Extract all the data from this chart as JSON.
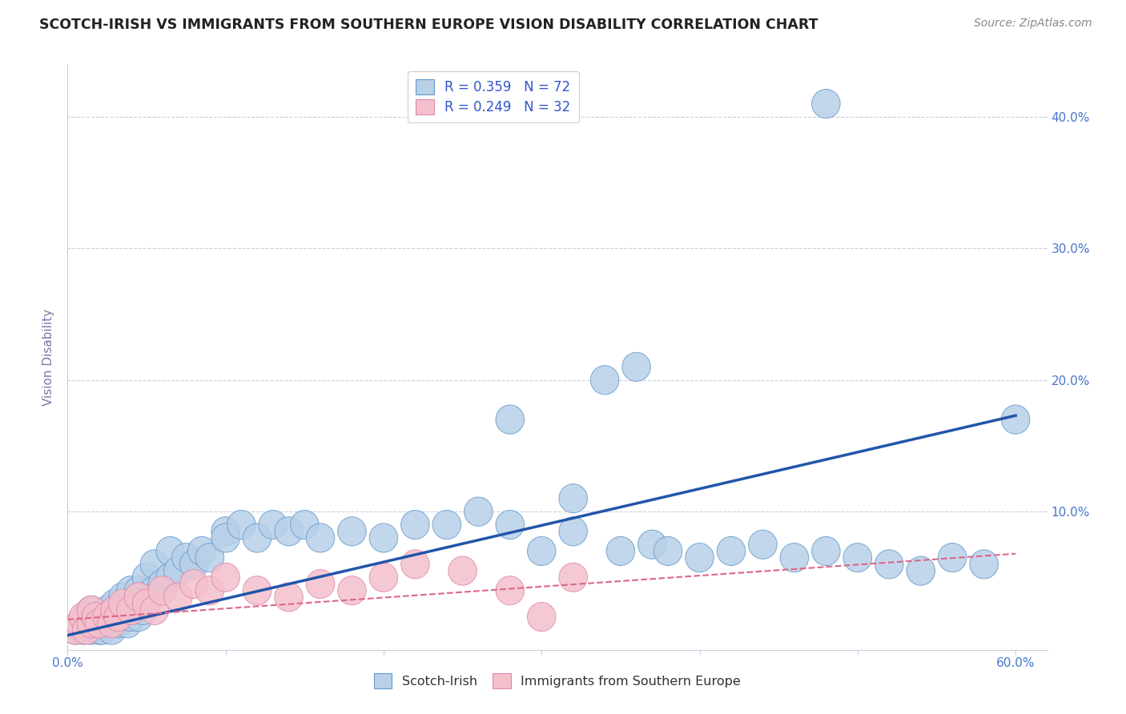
{
  "title": "SCOTCH-IRISH VS IMMIGRANTS FROM SOUTHERN EUROPE VISION DISABILITY CORRELATION CHART",
  "source": "Source: ZipAtlas.com",
  "ylabel": "Vision Disability",
  "r_blue": 0.359,
  "n_blue": 72,
  "r_pink": 0.249,
  "n_pink": 32,
  "legend_label_blue": "Scotch-Irish",
  "legend_label_pink": "Immigrants from Southern Europe",
  "blue_color": "#b8d0e8",
  "blue_edge_color": "#6699cc",
  "blue_line_color": "#2255aa",
  "pink_color": "#f4c0cc",
  "pink_edge_color": "#dd88aa",
  "pink_line_color": "#dd6688",
  "xlim": [
    0.0,
    0.62
  ],
  "ylim": [
    -0.005,
    0.44
  ],
  "title_color": "#222222",
  "source_color": "#888888",
  "grid_color": "#ccccdd",
  "right_ytick_vals": [
    0.1,
    0.2,
    0.3,
    0.4
  ],
  "right_yticklabels": [
    "10.0%",
    "20.0%",
    "30.0%",
    "40.0%"
  ],
  "blue_line_x": [
    0.0,
    0.6
  ],
  "blue_line_y": [
    0.006,
    0.173
  ],
  "pink_line_x": [
    0.0,
    0.6
  ],
  "pink_line_y": [
    0.018,
    0.068
  ],
  "blue_scatter_x": [
    0.005,
    0.008,
    0.01,
    0.012,
    0.015,
    0.015,
    0.018,
    0.02,
    0.02,
    0.022,
    0.025,
    0.025,
    0.028,
    0.03,
    0.03,
    0.032,
    0.035,
    0.035,
    0.038,
    0.04,
    0.04,
    0.042,
    0.045,
    0.045,
    0.048,
    0.05,
    0.05,
    0.055,
    0.055,
    0.06,
    0.065,
    0.065,
    0.07,
    0.075,
    0.08,
    0.085,
    0.09,
    0.1,
    0.1,
    0.11,
    0.12,
    0.13,
    0.14,
    0.15,
    0.16,
    0.18,
    0.2,
    0.22,
    0.24,
    0.26,
    0.28,
    0.3,
    0.32,
    0.35,
    0.37,
    0.38,
    0.4,
    0.42,
    0.44,
    0.46,
    0.48,
    0.5,
    0.52,
    0.54,
    0.56,
    0.58,
    0.6,
    0.32,
    0.28,
    0.34,
    0.36,
    0.48
  ],
  "blue_scatter_y": [
    0.01,
    0.015,
    0.01,
    0.02,
    0.01,
    0.025,
    0.015,
    0.01,
    0.02,
    0.01,
    0.015,
    0.025,
    0.01,
    0.02,
    0.03,
    0.015,
    0.02,
    0.035,
    0.015,
    0.02,
    0.04,
    0.025,
    0.02,
    0.04,
    0.025,
    0.03,
    0.05,
    0.04,
    0.06,
    0.045,
    0.05,
    0.07,
    0.055,
    0.065,
    0.06,
    0.07,
    0.065,
    0.085,
    0.08,
    0.09,
    0.08,
    0.09,
    0.085,
    0.09,
    0.08,
    0.085,
    0.08,
    0.09,
    0.09,
    0.1,
    0.09,
    0.07,
    0.085,
    0.07,
    0.075,
    0.07,
    0.065,
    0.07,
    0.075,
    0.065,
    0.07,
    0.065,
    0.06,
    0.055,
    0.065,
    0.06,
    0.17,
    0.11,
    0.17,
    0.2,
    0.21,
    0.41
  ],
  "pink_scatter_x": [
    0.005,
    0.008,
    0.01,
    0.012,
    0.015,
    0.015,
    0.018,
    0.02,
    0.025,
    0.028,
    0.03,
    0.032,
    0.035,
    0.04,
    0.045,
    0.05,
    0.055,
    0.06,
    0.07,
    0.08,
    0.09,
    0.1,
    0.12,
    0.14,
    0.16,
    0.18,
    0.2,
    0.22,
    0.25,
    0.28,
    0.3,
    0.32
  ],
  "pink_scatter_y": [
    0.01,
    0.015,
    0.02,
    0.01,
    0.015,
    0.025,
    0.02,
    0.015,
    0.02,
    0.015,
    0.025,
    0.02,
    0.03,
    0.025,
    0.035,
    0.03,
    0.025,
    0.04,
    0.035,
    0.045,
    0.04,
    0.05,
    0.04,
    0.035,
    0.045,
    0.04,
    0.05,
    0.06,
    0.055,
    0.04,
    0.02,
    0.05
  ]
}
